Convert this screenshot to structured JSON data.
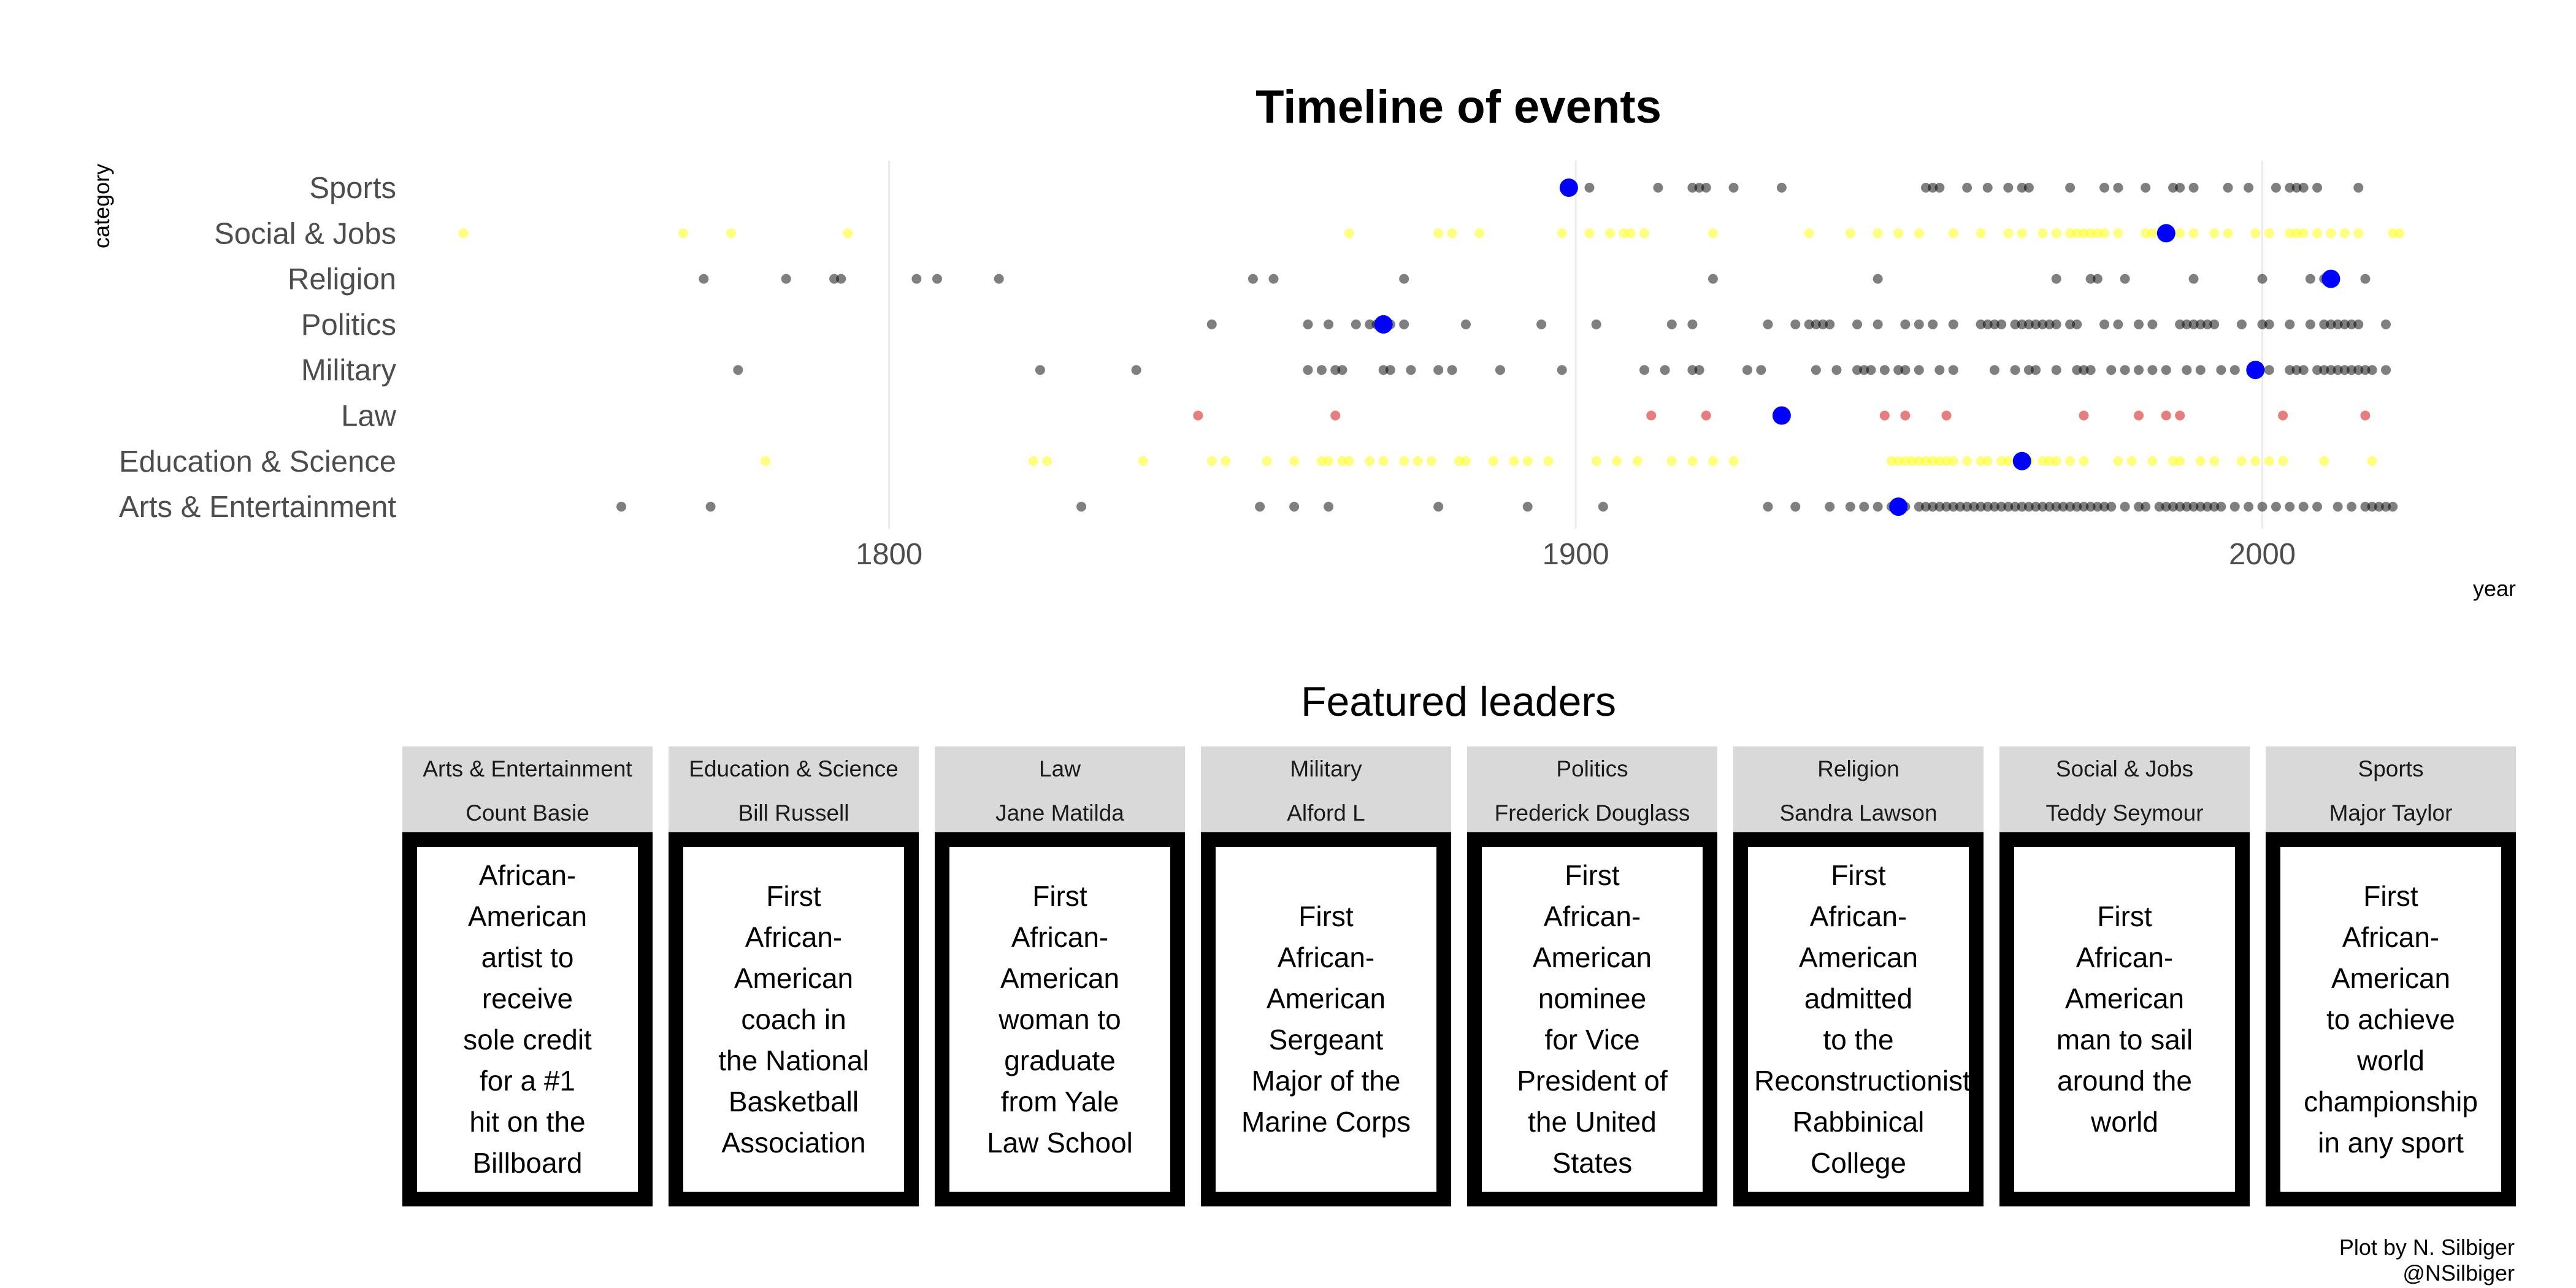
{
  "chart_data": {
    "type": "scatter",
    "title": "Timeline of events",
    "xlabel": "year",
    "ylabel": "category",
    "xlim": [
      1730,
      2023
    ],
    "x_ticks": [
      1800,
      1900,
      2000
    ],
    "grid": "vertical major lines",
    "categories": [
      "Arts & Entertainment",
      "Education & Science",
      "Law",
      "Military",
      "Politics",
      "Religion",
      "Social & Jobs",
      "Sports"
    ],
    "category_colors": {
      "Arts & Entertainment": "#000000",
      "Education & Science": "#ffff00",
      "Law": "#cc0000",
      "Military": "#000000",
      "Politics": "#000000",
      "Religion": "#000000",
      "Social & Jobs": "#ffff00",
      "Sports": "#000000"
    },
    "highlight_color": "#0000ff",
    "series": [
      {
        "category": "Sports",
        "highlight": 1899,
        "years": [
          1902,
          1912,
          1917,
          1918,
          1919,
          1923,
          1930,
          1951,
          1952,
          1953,
          1957,
          1960,
          1963,
          1965,
          1966,
          1972,
          1977,
          1979,
          1983,
          1987,
          1988,
          1990,
          1995,
          1998,
          2002,
          2004,
          2005,
          2006,
          2008,
          2014
        ]
      },
      {
        "category": "Social & Jobs",
        "highlight": 1986,
        "years": [
          1738,
          1770,
          1777,
          1794,
          1867,
          1880,
          1882,
          1886,
          1898,
          1902,
          1905,
          1907,
          1908,
          1910,
          1920,
          1934,
          1940,
          1944,
          1947,
          1950,
          1955,
          1959,
          1963,
          1965,
          1968,
          1970,
          1972,
          1973,
          1974,
          1975,
          1976,
          1977,
          1979,
          1983,
          1984,
          1988,
          1990,
          1993,
          1995,
          1999,
          2001,
          2004,
          2005,
          2006,
          2008,
          2010,
          2012,
          2014,
          2019,
          2020
        ]
      },
      {
        "category": "Religion",
        "highlight": 2010,
        "years": [
          1773,
          1785,
          1792,
          1793,
          1804,
          1807,
          1816,
          1853,
          1856,
          1875,
          1920,
          1944,
          1970,
          1975,
          1976,
          1980,
          1990,
          2000,
          2007,
          2009,
          2015
        ]
      },
      {
        "category": "Politics",
        "highlight": 1872,
        "years": [
          1847,
          1861,
          1864,
          1868,
          1870,
          1871,
          1873,
          1875,
          1884,
          1895,
          1903,
          1914,
          1917,
          1928,
          1932,
          1934,
          1935,
          1936,
          1937,
          1941,
          1944,
          1948,
          1950,
          1952,
          1955,
          1959,
          1960,
          1961,
          1962,
          1964,
          1965,
          1966,
          1967,
          1968,
          1969,
          1970,
          1972,
          1973,
          1977,
          1979,
          1982,
          1984,
          1988,
          1989,
          1990,
          1991,
          1992,
          1993,
          1997,
          2000,
          2001,
          2004,
          2007,
          2009,
          2010,
          2011,
          2012,
          2013,
          2014,
          2018
        ]
      },
      {
        "category": "Military",
        "highlight": 1999,
        "years": [
          1778,
          1822,
          1836,
          1861,
          1863,
          1865,
          1866,
          1872,
          1873,
          1876,
          1880,
          1882,
          1889,
          1898,
          1910,
          1913,
          1917,
          1918,
          1925,
          1927,
          1935,
          1938,
          1941,
          1942,
          1943,
          1945,
          1947,
          1948,
          1950,
          1953,
          1955,
          1961,
          1964,
          1966,
          1967,
          1970,
          1973,
          1974,
          1975,
          1978,
          1980,
          1982,
          1984,
          1986,
          1989,
          1991,
          1994,
          1996,
          2001,
          2004,
          2005,
          2006,
          2008,
          2009,
          2010,
          2011,
          2012,
          2013,
          2014,
          2015,
          2016,
          2018
        ]
      },
      {
        "category": "Law",
        "highlight": 1930,
        "years": [
          1845,
          1865,
          1911,
          1919,
          1945,
          1948,
          1954,
          1974,
          1982,
          1986,
          1988,
          2003,
          2015
        ]
      },
      {
        "category": "Education & Science",
        "highlight": 1965,
        "years": [
          1782,
          1821,
          1823,
          1837,
          1847,
          1849,
          1855,
          1859,
          1863,
          1864,
          1866,
          1867,
          1870,
          1872,
          1875,
          1877,
          1879,
          1883,
          1884,
          1888,
          1891,
          1893,
          1896,
          1903,
          1906,
          1909,
          1914,
          1917,
          1920,
          1923,
          1946,
          1947,
          1948,
          1949,
          1950,
          1951,
          1952,
          1953,
          1954,
          1955,
          1957,
          1959,
          1960,
          1962,
          1963,
          1965,
          1966,
          1968,
          1969,
          1970,
          1972,
          1974,
          1979,
          1981,
          1984,
          1987,
          1988,
          1991,
          1993,
          1997,
          1999,
          2001,
          2003,
          2009,
          2016
        ]
      },
      {
        "category": "Arts & Entertainment",
        "highlight": 1947,
        "years": [
          1761,
          1774,
          1828,
          1854,
          1859,
          1864,
          1880,
          1893,
          1904,
          1928,
          1932,
          1937,
          1940,
          1942,
          1944,
          1946,
          1948,
          1950,
          1951,
          1952,
          1953,
          1954,
          1955,
          1956,
          1957,
          1958,
          1959,
          1960,
          1961,
          1962,
          1963,
          1964,
          1965,
          1966,
          1967,
          1968,
          1969,
          1970,
          1971,
          1972,
          1973,
          1974,
          1975,
          1976,
          1977,
          1978,
          1980,
          1982,
          1983,
          1985,
          1986,
          1987,
          1988,
          1989,
          1990,
          1991,
          1992,
          1993,
          1994,
          1996,
          1998,
          2000,
          2002,
          2004,
          2006,
          2008,
          2011,
          2013,
          2015,
          2016,
          2017,
          2018,
          2019
        ]
      }
    ]
  },
  "featured": {
    "title": "Featured leaders",
    "panels": [
      {
        "category": "Arts & Entertainment",
        "name": "Count Basie",
        "text": "African-\nAmerican\nartist to\nreceive\nsole credit\nfor a #1\nhit on the\nBillboard"
      },
      {
        "category": "Education & Science",
        "name": "Bill Russell",
        "text": "First\nAfrican-\nAmerican\ncoach in\nthe National\nBasketball\nAssociation"
      },
      {
        "category": "Law",
        "name": "Jane Matilda",
        "text": "First\nAfrican-\nAmerican\nwoman to\ngraduate\nfrom Yale\nLaw School"
      },
      {
        "category": "Military",
        "name": "Alford L",
        "text": "First\nAfrican-\nAmerican\nSergeant\nMajor of the\nMarine Corps"
      },
      {
        "category": "Politics",
        "name": "Frederick Douglass",
        "text": "First\nAfrican-\nAmerican\nnominee\nfor Vice\nPresident of\nthe United\nStates"
      },
      {
        "category": "Religion",
        "name": "Sandra Lawson",
        "text": "First\nAfrican-\nAmerican\nadmitted\nto the\nReconstructionist\nRabbinical\nCollege"
      },
      {
        "category": "Social & Jobs",
        "name": "Teddy Seymour",
        "text": "First\nAfrican-\nAmerican\nman to sail\naround the\nworld"
      },
      {
        "category": "Sports",
        "name": "Major Taylor",
        "text": "First\nAfrican-\nAmerican\nto achieve\nworld\nchampionship\nin any sport"
      }
    ]
  },
  "caption": {
    "line1": "Plot by N. Silbiger",
    "line2": "@NSilbiger"
  }
}
